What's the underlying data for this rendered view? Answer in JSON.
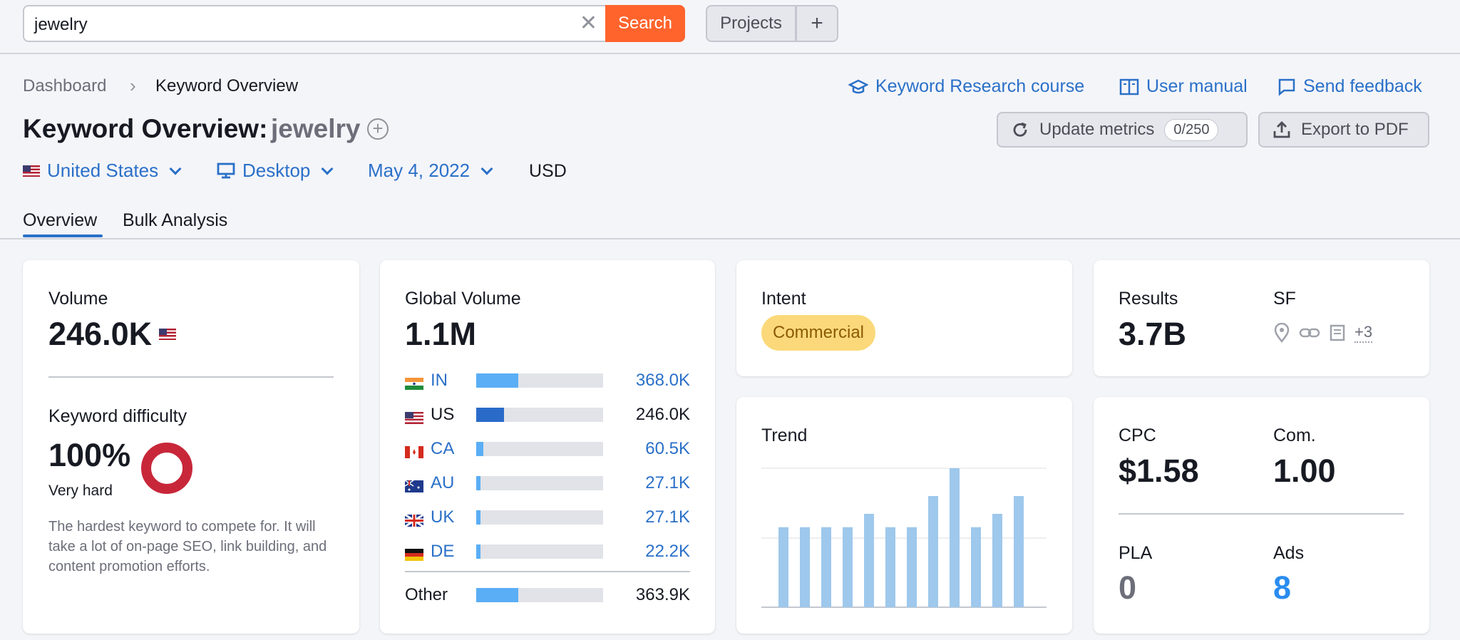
{
  "search": {
    "value": "jewelry",
    "button": "Search"
  },
  "topnav": {
    "projects": "Projects",
    "plus": "+"
  },
  "breadcrumb": {
    "home": "Dashboard",
    "current": "Keyword Overview"
  },
  "header_links": {
    "course": "Keyword Research course",
    "manual": "User manual",
    "feedback": "Send feedback"
  },
  "title": {
    "prefix": "Keyword Overview:",
    "keyword": "jewelry"
  },
  "actions": {
    "update": "Update metrics",
    "update_badge": "0/250",
    "export": "Export to PDF"
  },
  "filters": {
    "country": "United States",
    "device": "Desktop",
    "date": "May 4, 2022",
    "currency": "USD"
  },
  "tabs": [
    "Overview",
    "Bulk Analysis"
  ],
  "volume": {
    "label": "Volume",
    "value": "246.0K"
  },
  "difficulty": {
    "label": "Keyword difficulty",
    "value": "100%",
    "level": "Very hard",
    "percent": 100,
    "description": "The hardest keyword to compete for. It will take a lot of on-page SEO, link building, and content promotion efforts."
  },
  "global_volume": {
    "label": "Global Volume",
    "value": "1.1M",
    "rows": [
      {
        "code": "IN",
        "value": "368.0K",
        "share": 0.33,
        "link": true
      },
      {
        "code": "US",
        "value": "246.0K",
        "share": 0.22,
        "link": false
      },
      {
        "code": "CA",
        "value": "60.5K",
        "share": 0.055,
        "link": true
      },
      {
        "code": "AU",
        "value": "27.1K",
        "share": 0.025,
        "link": true
      },
      {
        "code": "UK",
        "value": "27.1K",
        "share": 0.025,
        "link": true
      },
      {
        "code": "DE",
        "value": "22.2K",
        "share": 0.02,
        "link": true
      }
    ],
    "other": {
      "label": "Other",
      "value": "363.9K",
      "share": 0.33
    }
  },
  "intent": {
    "label": "Intent",
    "value": "Commercial"
  },
  "results": {
    "label": "Results",
    "value": "3.7B",
    "sf_label": "SF",
    "sf_more": "+3"
  },
  "trend": {
    "label": "Trend",
    "values": [
      0.72,
      0.72,
      0.72,
      0.72,
      0.84,
      0.72,
      0.72,
      1.0,
      1.25,
      0.72,
      0.84,
      1.0
    ]
  },
  "cpc": {
    "label": "CPC",
    "value": "$1.58"
  },
  "com": {
    "label": "Com.",
    "value": "1.00"
  },
  "pla": {
    "label": "PLA",
    "value": "0"
  },
  "ads": {
    "label": "Ads",
    "value": "8"
  },
  "colors": {
    "accent": "#ff642d",
    "link": "#2a70c8",
    "difficulty": "#c8273a",
    "bar": "#5aaef5",
    "bar_dark": "#2a6bc9",
    "trend": "#9ec8ec",
    "intent_bg": "#fbd97a"
  }
}
